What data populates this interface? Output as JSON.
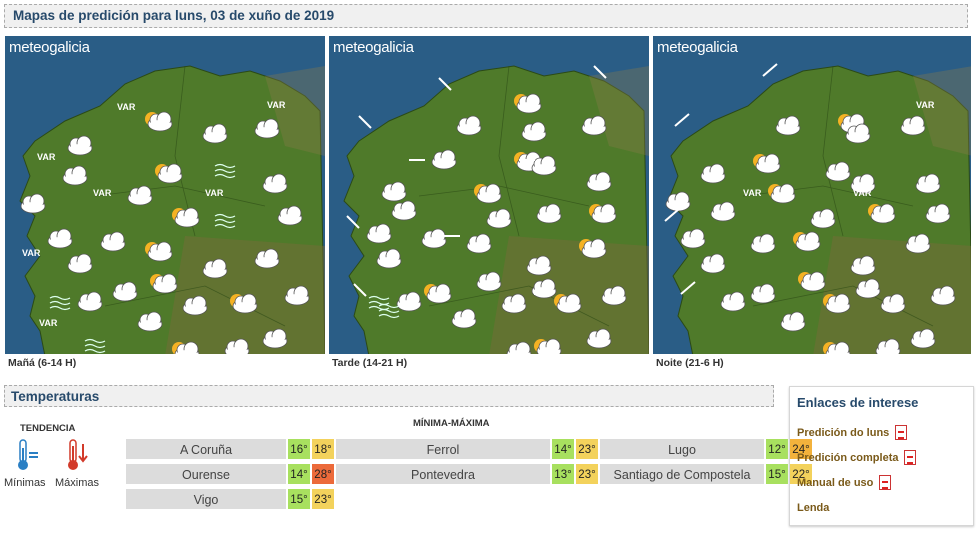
{
  "header": {
    "title": "Mapas de predición para luns, 03 de xuño de 2019"
  },
  "maps": [
    {
      "logo": "meteogalicia",
      "caption": "Mañá (6-14 H)"
    },
    {
      "logo": "meteogalicia",
      "caption": "Tarde (14-21 H)"
    },
    {
      "logo": "meteogalicia",
      "caption": "Noite (21-6 H)"
    }
  ],
  "map_labels": {
    "var": "VAR"
  },
  "temperatures": {
    "title": "Temperaturas",
    "trend_label": "TENDENCIA",
    "min_label": "Mínimas",
    "max_label": "Máximas",
    "range_label": "MÍNIMA-MÁXIMA",
    "cities": [
      {
        "name": "A Coruña",
        "min": "16°",
        "max": "18°"
      },
      {
        "name": "Ferrol",
        "min": "14°",
        "max": "23°"
      },
      {
        "name": "Lugo",
        "min": "12°",
        "max": "24°"
      },
      {
        "name": "Ourense",
        "min": "14°",
        "max": "28°"
      },
      {
        "name": "Pontevedra",
        "min": "13°",
        "max": "23°"
      },
      {
        "name": "Santiago de Compostela",
        "min": "15°",
        "max": "22°"
      },
      {
        "name": "Vigo",
        "min": "15°",
        "max": "23°"
      }
    ]
  },
  "links": {
    "title": "Enlaces de interese",
    "items": [
      {
        "label": "Predición do luns",
        "icon": "pdf-icon"
      },
      {
        "label": "Predición completa",
        "icon": "pdf-icon"
      },
      {
        "label": "Manual de uso",
        "icon": "pdf-icon"
      },
      {
        "label": "Lenda"
      }
    ]
  }
}
